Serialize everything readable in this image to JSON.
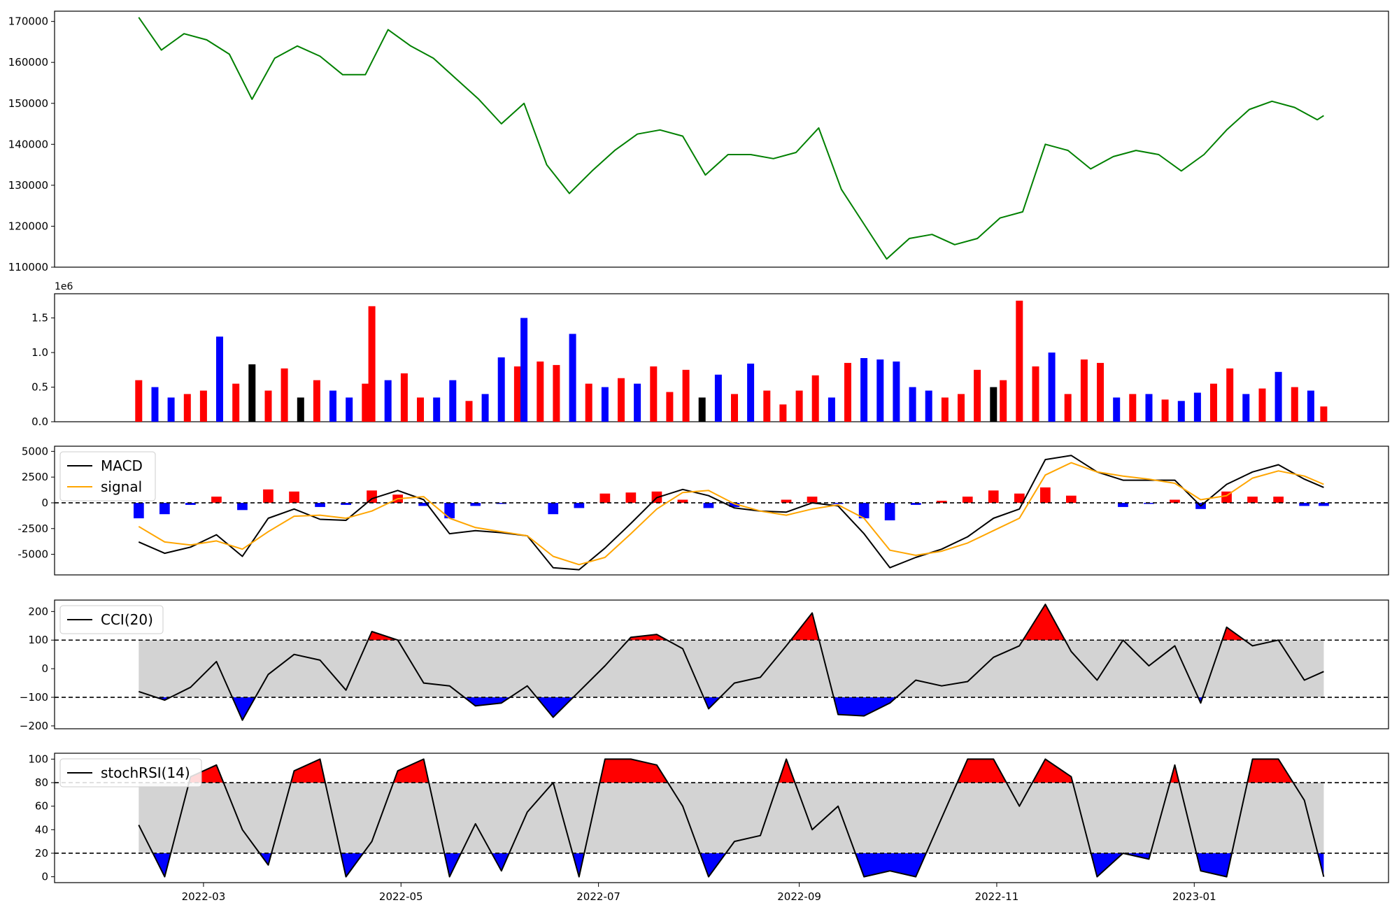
{
  "chart_data": [
    {
      "type": "line",
      "panel": "price",
      "xlim": [
        "2022-01-14",
        "2023-03-02"
      ],
      "ylim": [
        110000,
        172500
      ],
      "yticks": [
        110000,
        120000,
        130000,
        140000,
        150000,
        160000,
        170000
      ],
      "ytick_labels": [
        "110000",
        "120000",
        "130000",
        "140000",
        "150000",
        "160000",
        "170000"
      ],
      "line_color": "#008000",
      "grid": false,
      "x": [
        "2022-02-09",
        "2022-02-16",
        "2022-02-23",
        "2022-03-02",
        "2022-03-09",
        "2022-03-16",
        "2022-03-23",
        "2022-03-30",
        "2022-04-06",
        "2022-04-13",
        "2022-04-20",
        "2022-04-27",
        "2022-05-04",
        "2022-05-11",
        "2022-05-18",
        "2022-05-25",
        "2022-06-01",
        "2022-06-08",
        "2022-06-15",
        "2022-06-22",
        "2022-06-29",
        "2022-07-06",
        "2022-07-13",
        "2022-07-20",
        "2022-07-27",
        "2022-08-03",
        "2022-08-10",
        "2022-08-17",
        "2022-08-24",
        "2022-08-31",
        "2022-09-07",
        "2022-09-14",
        "2022-09-21",
        "2022-09-28",
        "2022-10-05",
        "2022-10-12",
        "2022-10-19",
        "2022-10-26",
        "2022-11-02",
        "2022-11-09",
        "2022-11-16",
        "2022-11-23",
        "2022-11-30",
        "2022-12-07",
        "2022-12-14",
        "2022-12-21",
        "2022-12-28",
        "2023-01-04",
        "2023-01-11",
        "2023-01-18",
        "2023-01-25",
        "2023-02-01",
        "2023-02-08",
        "2023-02-10"
      ],
      "values": [
        171000,
        163000,
        167000,
        165500,
        162000,
        151000,
        161000,
        164000,
        161500,
        157000,
        157000,
        168000,
        164000,
        161000,
        156000,
        151000,
        145000,
        150000,
        135000,
        128000,
        133500,
        138500,
        142500,
        143500,
        142000,
        132500,
        137500,
        137500,
        136500,
        138000,
        144000,
        129000,
        120500,
        112000,
        117000,
        118000,
        115500,
        117000,
        122000,
        123500,
        140000,
        138500,
        134000,
        137000,
        138500,
        137500,
        133500,
        137500,
        143500,
        148500,
        150500,
        149000,
        146000,
        147000
      ],
      "xtick_labels": []
    },
    {
      "type": "bar",
      "panel": "volume",
      "offset_label": "1e6",
      "ylim": [
        0,
        1.85
      ],
      "yticks": [
        0,
        0.5,
        1.0,
        1.5
      ],
      "ytick_labels": [
        "0.0",
        "0.5",
        "1.0",
        "1.5"
      ],
      "colors": {
        "up": "#ff0000",
        "down": "#0000ff",
        "flat": "#000000"
      },
      "x": [
        "2022-02-09",
        "2022-02-14",
        "2022-02-19",
        "2022-02-24",
        "2022-03-01",
        "2022-03-06",
        "2022-03-11",
        "2022-03-16",
        "2022-03-21",
        "2022-03-26",
        "2022-03-31",
        "2022-04-05",
        "2022-04-10",
        "2022-04-15",
        "2022-04-20",
        "2022-04-22",
        "2022-04-27",
        "2022-05-02",
        "2022-05-07",
        "2022-05-12",
        "2022-05-17",
        "2022-05-22",
        "2022-05-27",
        "2022-06-01",
        "2022-06-06",
        "2022-06-08",
        "2022-06-13",
        "2022-06-18",
        "2022-06-23",
        "2022-06-28",
        "2022-07-03",
        "2022-07-08",
        "2022-07-13",
        "2022-07-18",
        "2022-07-23",
        "2022-07-28",
        "2022-08-02",
        "2022-08-07",
        "2022-08-12",
        "2022-08-17",
        "2022-08-22",
        "2022-08-27",
        "2022-09-01",
        "2022-09-06",
        "2022-09-11",
        "2022-09-16",
        "2022-09-21",
        "2022-09-26",
        "2022-10-01",
        "2022-10-06",
        "2022-10-11",
        "2022-10-16",
        "2022-10-21",
        "2022-10-26",
        "2022-10-31",
        "2022-11-03",
        "2022-11-08",
        "2022-11-13",
        "2022-11-18",
        "2022-11-23",
        "2022-11-28",
        "2022-12-03",
        "2022-12-08",
        "2022-12-13",
        "2022-12-18",
        "2022-12-23",
        "2022-12-28",
        "2023-01-02",
        "2023-01-07",
        "2023-01-12",
        "2023-01-17",
        "2023-01-22",
        "2023-01-27",
        "2023-02-01",
        "2023-02-06",
        "2023-02-10"
      ],
      "values": [
        0.6,
        0.5,
        0.35,
        0.4,
        0.45,
        1.23,
        0.55,
        0.83,
        0.45,
        0.77,
        0.35,
        0.6,
        0.45,
        0.35,
        0.55,
        1.67,
        0.6,
        0.7,
        0.35,
        0.35,
        0.6,
        0.3,
        0.4,
        0.93,
        0.8,
        1.5,
        0.87,
        0.82,
        1.27,
        0.55,
        0.5,
        0.63,
        0.55,
        0.8,
        0.43,
        0.75,
        0.35,
        0.68,
        0.4,
        0.84,
        0.45,
        0.25,
        0.45,
        0.67,
        0.35,
        0.85,
        0.92,
        0.9,
        0.87,
        0.5,
        0.45,
        0.35,
        0.4,
        0.75,
        0.5,
        0.6,
        1.75,
        0.8,
        1.0,
        0.4,
        0.9,
        0.85,
        0.35,
        0.4,
        0.4,
        0.32,
        0.3,
        0.42,
        0.55,
        0.77,
        0.4,
        0.48,
        0.72,
        0.5,
        0.45,
        0.22
      ],
      "bar_colors": [
        "up",
        "down",
        "down",
        "up",
        "up",
        "down",
        "up",
        "flat",
        "up",
        "up",
        "flat",
        "up",
        "down",
        "down",
        "up",
        "up",
        "down",
        "up",
        "up",
        "down",
        "down",
        "up",
        "down",
        "down",
        "up",
        "down",
        "up",
        "up",
        "down",
        "up",
        "down",
        "up",
        "down",
        "up",
        "up",
        "up",
        "flat",
        "down",
        "up",
        "down",
        "up",
        "up",
        "up",
        "up",
        "down",
        "up",
        "down",
        "down",
        "down",
        "down",
        "down",
        "up",
        "up",
        "up",
        "flat",
        "up",
        "up",
        "up",
        "down",
        "up",
        "up",
        "up",
        "down",
        "up",
        "down",
        "up",
        "down",
        "down",
        "up",
        "up",
        "down",
        "up",
        "down",
        "up",
        "down",
        "up"
      ],
      "xtick_labels": []
    },
    {
      "type": "line",
      "panel": "macd",
      "ylim": [
        -7000,
        5500
      ],
      "yticks": [
        -5000,
        -2500,
        0,
        2500,
        5000
      ],
      "ytick_labels": [
        "-5000",
        "-2500",
        "0",
        "2500",
        "5000"
      ],
      "zero_line": 0,
      "legend": {
        "placement": "upper-left"
      },
      "x": [
        "2022-02-09",
        "2022-02-17",
        "2022-02-25",
        "2022-03-05",
        "2022-03-13",
        "2022-03-21",
        "2022-03-29",
        "2022-04-06",
        "2022-04-14",
        "2022-04-22",
        "2022-04-30",
        "2022-05-08",
        "2022-05-16",
        "2022-05-24",
        "2022-06-01",
        "2022-06-09",
        "2022-06-17",
        "2022-06-25",
        "2022-07-03",
        "2022-07-11",
        "2022-07-19",
        "2022-07-27",
        "2022-08-04",
        "2022-08-12",
        "2022-08-20",
        "2022-08-28",
        "2022-09-05",
        "2022-09-13",
        "2022-09-21",
        "2022-09-29",
        "2022-10-07",
        "2022-10-15",
        "2022-10-23",
        "2022-10-31",
        "2022-11-08",
        "2022-11-16",
        "2022-11-24",
        "2022-12-02",
        "2022-12-10",
        "2022-12-18",
        "2022-12-26",
        "2023-01-03",
        "2023-01-11",
        "2023-01-19",
        "2023-01-27",
        "2023-02-04",
        "2023-02-10"
      ],
      "series": [
        {
          "name": "MACD",
          "color": "#000000",
          "values": [
            -3800,
            -4900,
            -4300,
            -3100,
            -5200,
            -1500,
            -600,
            -1600,
            -1700,
            400,
            1200,
            300,
            -3000,
            -2700,
            -2900,
            -3200,
            -6300,
            -6500,
            -4400,
            -2000,
            500,
            1300,
            700,
            -500,
            -800,
            -900,
            0,
            -300,
            -3000,
            -6300,
            -5300,
            -4500,
            -3300,
            -1500,
            -600,
            4200,
            4600,
            3000,
            2200,
            2200,
            2200,
            -300,
            1800,
            3000,
            3700,
            2300,
            1500
          ]
        },
        {
          "name": "signal",
          "color": "#ffa500",
          "values": [
            -2300,
            -3800,
            -4100,
            -3700,
            -4500,
            -2800,
            -1300,
            -1200,
            -1500,
            -800,
            400,
            600,
            -1500,
            -2400,
            -2800,
            -3200,
            -5200,
            -6000,
            -5300,
            -3000,
            -600,
            1000,
            1200,
            -100,
            -800,
            -1200,
            -600,
            -200,
            -1500,
            -4600,
            -5100,
            -4700,
            -3900,
            -2700,
            -1500,
            2700,
            3900,
            3000,
            2600,
            2300,
            1900,
            300,
            700,
            2400,
            3100,
            2600,
            1800
          ]
        }
      ],
      "histogram": [
        -1500,
        -1100,
        -200,
        600,
        -700,
        1300,
        1100,
        -400,
        -200,
        1200,
        800,
        -300,
        -1500,
        -300,
        -100,
        0,
        -1100,
        -500,
        900,
        1000,
        1100,
        300,
        -500,
        -400,
        0,
        300,
        600,
        -100,
        -1500,
        -1700,
        -200,
        200,
        600,
        1200,
        900,
        1500,
        700,
        0,
        -400,
        -100,
        300,
        -600,
        1100,
        600,
        600,
        -300,
        -300
      ],
      "hist_colors": {
        "positive": "#ff0000",
        "negative": "#0000ff"
      },
      "xtick_labels": []
    },
    {
      "type": "line",
      "panel": "cci",
      "ylim": [
        -210,
        240
      ],
      "yticks": [
        -200,
        -100,
        0,
        100,
        200
      ],
      "ytick_labels": [
        "−200",
        "−100",
        "0",
        "100",
        "200"
      ],
      "levels": [
        100,
        -100
      ],
      "band_color": "#d3d3d3",
      "fill_colors": {
        "above": "#ff0000",
        "below": "#0000ff"
      },
      "legend": {
        "placement": "upper-left"
      },
      "x": [
        "2022-02-09",
        "2022-02-17",
        "2022-02-25",
        "2022-03-05",
        "2022-03-13",
        "2022-03-21",
        "2022-03-29",
        "2022-04-06",
        "2022-04-14",
        "2022-04-22",
        "2022-04-30",
        "2022-05-08",
        "2022-05-16",
        "2022-05-24",
        "2022-06-01",
        "2022-06-09",
        "2022-06-17",
        "2022-06-25",
        "2022-07-03",
        "2022-07-11",
        "2022-07-19",
        "2022-07-27",
        "2022-08-04",
        "2022-08-12",
        "2022-08-20",
        "2022-08-28",
        "2022-09-05",
        "2022-09-13",
        "2022-09-21",
        "2022-09-29",
        "2022-10-07",
        "2022-10-15",
        "2022-10-23",
        "2022-10-31",
        "2022-11-08",
        "2022-11-16",
        "2022-11-24",
        "2022-12-02",
        "2022-12-10",
        "2022-12-18",
        "2022-12-26",
        "2023-01-03",
        "2023-01-11",
        "2023-01-19",
        "2023-01-27",
        "2023-02-04",
        "2023-02-10"
      ],
      "series": [
        {
          "name": "CCI(20)",
          "color": "#000000",
          "values": [
            -80,
            -110,
            -65,
            25,
            -180,
            -20,
            50,
            30,
            -75,
            130,
            100,
            -50,
            -60,
            -130,
            -120,
            -60,
            -170,
            -80,
            10,
            110,
            120,
            70,
            -140,
            -50,
            -30,
            80,
            195,
            -160,
            -165,
            -120,
            -40,
            -60,
            -45,
            40,
            80,
            225,
            60,
            -40,
            100,
            10,
            80,
            -120,
            145,
            80,
            100,
            -40,
            -10
          ]
        }
      ],
      "xtick_labels": []
    },
    {
      "type": "line",
      "panel": "stochrsi",
      "ylim": [
        -5,
        105
      ],
      "yticks": [
        0,
        20,
        40,
        60,
        80,
        100
      ],
      "ytick_labels": [
        "0",
        "20",
        "40",
        "60",
        "80",
        "100"
      ],
      "levels": [
        80,
        20
      ],
      "band_color": "#d3d3d3",
      "fill_colors": {
        "above": "#ff0000",
        "below": "#0000ff"
      },
      "legend": {
        "placement": "upper-left"
      },
      "x": [
        "2022-02-09",
        "2022-02-17",
        "2022-02-25",
        "2022-03-05",
        "2022-03-13",
        "2022-03-21",
        "2022-03-29",
        "2022-04-06",
        "2022-04-14",
        "2022-04-22",
        "2022-04-30",
        "2022-05-08",
        "2022-05-16",
        "2022-05-24",
        "2022-06-01",
        "2022-06-09",
        "2022-06-17",
        "2022-06-25",
        "2022-07-03",
        "2022-07-11",
        "2022-07-19",
        "2022-07-27",
        "2022-08-04",
        "2022-08-12",
        "2022-08-20",
        "2022-08-28",
        "2022-09-05",
        "2022-09-13",
        "2022-09-21",
        "2022-09-29",
        "2022-10-07",
        "2022-10-15",
        "2022-10-23",
        "2022-10-31",
        "2022-11-08",
        "2022-11-16",
        "2022-11-24",
        "2022-12-02",
        "2022-12-10",
        "2022-12-18",
        "2022-12-26",
        "2023-01-03",
        "2023-01-11",
        "2023-01-19",
        "2023-01-27",
        "2023-02-04",
        "2023-02-10"
      ],
      "series": [
        {
          "name": "stochRSI(14)",
          "color": "#000000",
          "values": [
            44,
            0,
            85,
            95,
            40,
            10,
            90,
            100,
            0,
            30,
            90,
            100,
            0,
            45,
            5,
            55,
            80,
            0,
            100,
            100,
            95,
            60,
            0,
            30,
            35,
            100,
            40,
            60,
            0,
            5,
            0,
            50,
            100,
            100,
            60,
            100,
            85,
            0,
            20,
            15,
            95,
            5,
            0,
            100,
            100,
            65,
            0
          ]
        }
      ],
      "xtick_labels": [
        "2022-03",
        "2022-05",
        "2022-07",
        "2022-09",
        "2022-11",
        "2023-01"
      ],
      "xtick_dates": [
        "2022-03-01",
        "2022-05-01",
        "2022-07-01",
        "2022-09-01",
        "2022-11-01",
        "2023-01-01"
      ]
    }
  ]
}
